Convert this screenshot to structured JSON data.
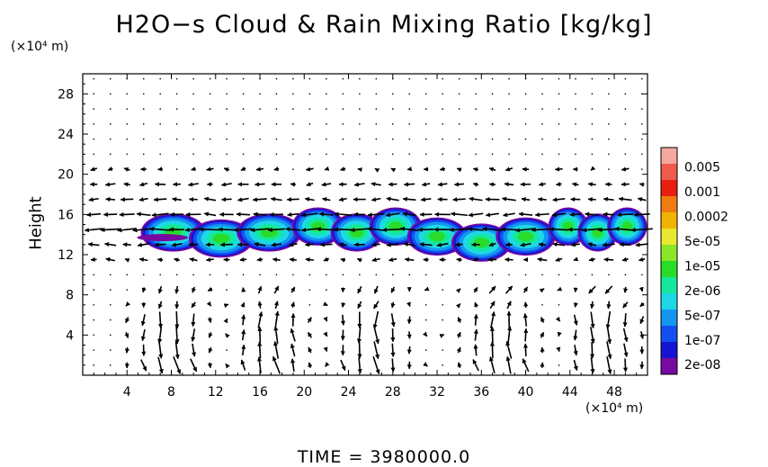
{
  "chart_data": {
    "type": "contour-vector",
    "title": "H2O−s Cloud & Rain Mixing Ratio [kg/kg]",
    "xunit": "(×10⁴ m)",
    "yunit": "(×10⁴ m)",
    "ylabel": "Height",
    "footer": "TIME = 3980000.0",
    "xlim": [
      0,
      51
    ],
    "ylim": [
      0,
      30
    ],
    "xticks": [
      4,
      8,
      12,
      16,
      20,
      24,
      28,
      32,
      36,
      40,
      44,
      48
    ],
    "yticks": [
      4,
      8,
      12,
      16,
      20,
      24,
      28
    ],
    "colorbar": {
      "labels": [
        "0.005",
        "0.001",
        "0.0002",
        "5e-05",
        "1e-05",
        "2e-06",
        "5e-07",
        "1e-07",
        "2e-08"
      ],
      "colors": [
        "#f4a8a0",
        "#f05a4a",
        "#e81e10",
        "#f07c10",
        "#f0b400",
        "#e8e830",
        "#8ce628",
        "#28dc28",
        "#14e89c",
        "#1ed8e6",
        "#1496f0",
        "#1450f0",
        "#1414d2",
        "#780aa0"
      ]
    },
    "cloud_layer": {
      "y_range": [
        12,
        16
      ],
      "patches": [
        {
          "x0": 6.0,
          "x1": 19.0,
          "y_center": 14.0
        },
        {
          "x0": 19.5,
          "x1": 30.0,
          "y_center": 14.3
        },
        {
          "x0": 30.0,
          "x1": 42.0,
          "y_center": 13.6
        },
        {
          "x0": 42.5,
          "x1": 50.5,
          "y_center": 14.3
        }
      ]
    },
    "vector_field": {
      "description": "wind vectors",
      "circulation_cells_x": [
        8,
        17,
        26,
        38,
        47
      ]
    }
  }
}
